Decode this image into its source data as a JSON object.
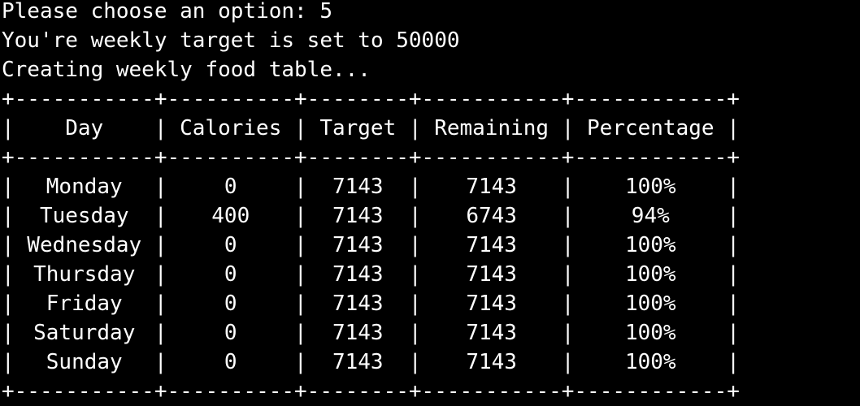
{
  "terminal": {
    "prompt_line": "Please choose an option: 5",
    "target_line": "You're weekly target is set to 50000",
    "status_line": "Creating weekly food table..."
  },
  "table": {
    "border_line": "+-----------+----------+--------+-----------+------------+",
    "header": [
      "Day",
      "Calories",
      "Target",
      "Remaining",
      "Percentage"
    ],
    "rows": [
      [
        "Monday",
        "0",
        "7143",
        "7143",
        "100%"
      ],
      [
        "Tuesday",
        "400",
        "7143",
        "6743",
        "94%"
      ],
      [
        "Wednesday",
        "0",
        "7143",
        "7143",
        "100%"
      ],
      [
        "Thursday",
        "0",
        "7143",
        "7143",
        "100%"
      ],
      [
        "Friday",
        "0",
        "7143",
        "7143",
        "100%"
      ],
      [
        "Saturday",
        "0",
        "7143",
        "7143",
        "100%"
      ],
      [
        "Sunday",
        "0",
        "7143",
        "7143",
        "100%"
      ]
    ]
  }
}
